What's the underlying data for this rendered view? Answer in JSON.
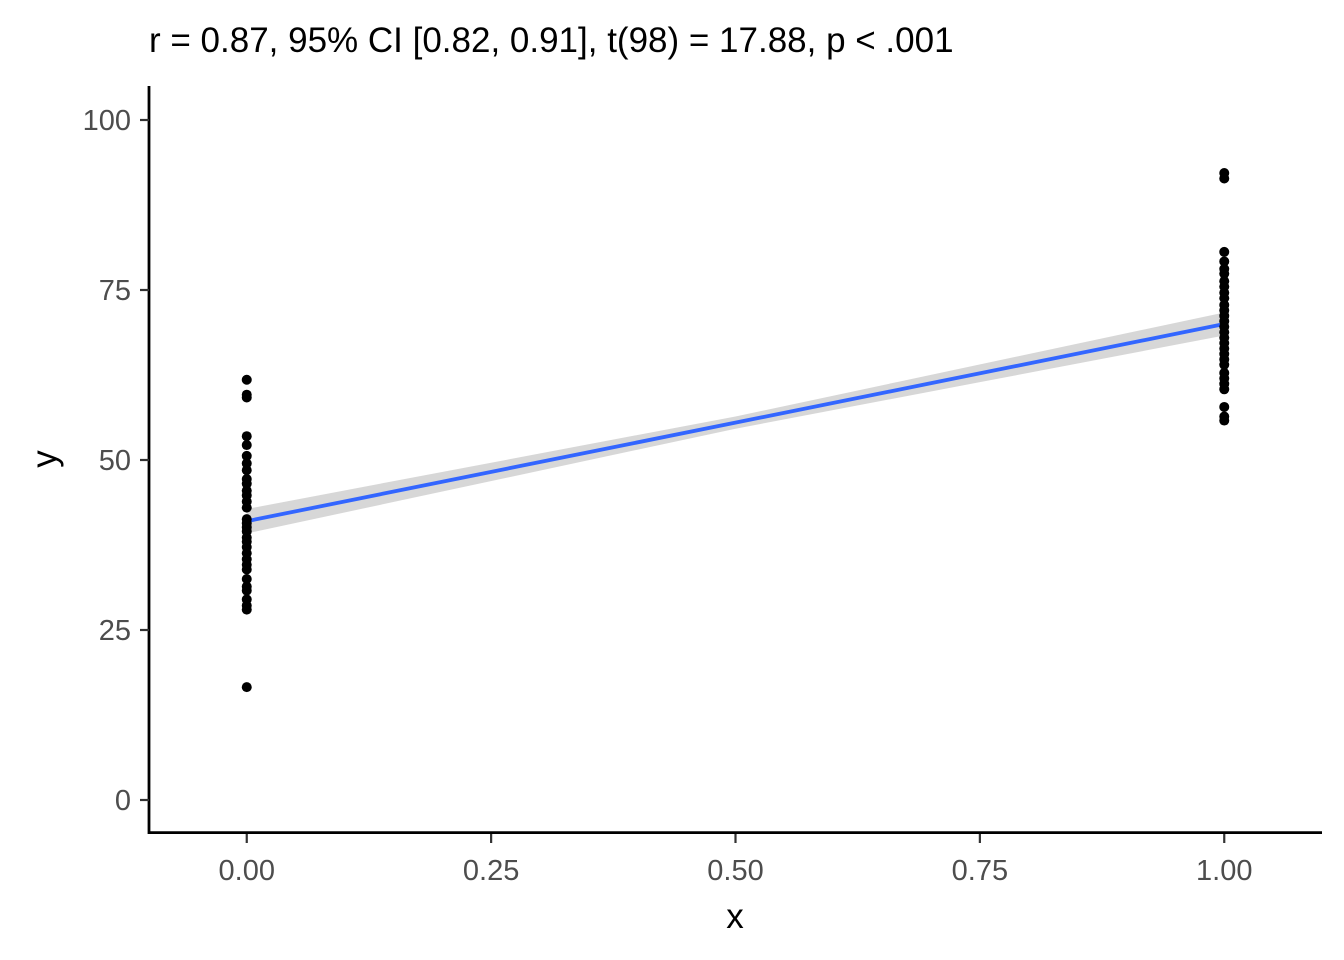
{
  "chart_data": {
    "type": "scatter",
    "title": "r = 0.87, 95% CI [0.82, 0.91], t(98) = 17.88, p < .001",
    "xlabel": "x",
    "ylabel": "y",
    "xlim": [
      -0.1,
      1.1
    ],
    "ylim": [
      -5,
      105
    ],
    "x_ticks": [
      0,
      0.25,
      0.5,
      0.75,
      1
    ],
    "x_tick_labels": [
      "0.00",
      "0.25",
      "0.50",
      "0.75",
      "1.00"
    ],
    "y_ticks": [
      0,
      25,
      50,
      75,
      100
    ],
    "y_tick_labels": [
      "0",
      "25",
      "50",
      "75",
      "100"
    ],
    "grid": false,
    "legend": "none",
    "series": [
      {
        "type": "scatter",
        "color": "#000000",
        "points": [
          {
            "x": 0,
            "y": 61.8
          },
          {
            "x": 0,
            "y": 59.6
          },
          {
            "x": 0,
            "y": 59.2
          },
          {
            "x": 0,
            "y": 53.5
          },
          {
            "x": 0,
            "y": 52.2
          },
          {
            "x": 0,
            "y": 50.6
          },
          {
            "x": 0,
            "y": 49.5
          },
          {
            "x": 0,
            "y": 48.5
          },
          {
            "x": 0,
            "y": 47.2
          },
          {
            "x": 0,
            "y": 46.5
          },
          {
            "x": 0,
            "y": 45.5
          },
          {
            "x": 0,
            "y": 44.8
          },
          {
            "x": 0,
            "y": 43.9
          },
          {
            "x": 0,
            "y": 43.0
          },
          {
            "x": 0,
            "y": 41.3
          },
          {
            "x": 0,
            "y": 40.7
          },
          {
            "x": 0,
            "y": 40.1
          },
          {
            "x": 0,
            "y": 39.5
          },
          {
            "x": 0,
            "y": 38.6
          },
          {
            "x": 0,
            "y": 38.0
          },
          {
            "x": 0,
            "y": 37.2
          },
          {
            "x": 0,
            "y": 36.3
          },
          {
            "x": 0,
            "y": 35.4
          },
          {
            "x": 0,
            "y": 34.6
          },
          {
            "x": 0,
            "y": 33.9
          },
          {
            "x": 0,
            "y": 32.5
          },
          {
            "x": 0,
            "y": 31.4
          },
          {
            "x": 0,
            "y": 30.8
          },
          {
            "x": 0,
            "y": 29.5
          },
          {
            "x": 0,
            "y": 28.6
          },
          {
            "x": 0,
            "y": 28.0
          },
          {
            "x": 0,
            "y": 16.6
          },
          {
            "x": 1,
            "y": 92.2
          },
          {
            "x": 1,
            "y": 91.4
          },
          {
            "x": 1,
            "y": 80.6
          },
          {
            "x": 1,
            "y": 79.2
          },
          {
            "x": 1,
            "y": 78.1
          },
          {
            "x": 1,
            "y": 77.4
          },
          {
            "x": 1,
            "y": 76.3
          },
          {
            "x": 1,
            "y": 75.5
          },
          {
            "x": 1,
            "y": 74.6
          },
          {
            "x": 1,
            "y": 73.8
          },
          {
            "x": 1,
            "y": 72.8
          },
          {
            "x": 1,
            "y": 72.0
          },
          {
            "x": 1,
            "y": 71.2
          },
          {
            "x": 1,
            "y": 70.4
          },
          {
            "x": 1,
            "y": 69.6
          },
          {
            "x": 1,
            "y": 68.8
          },
          {
            "x": 1,
            "y": 68.0
          },
          {
            "x": 1,
            "y": 67.2
          },
          {
            "x": 1,
            "y": 66.4
          },
          {
            "x": 1,
            "y": 65.6
          },
          {
            "x": 1,
            "y": 64.8
          },
          {
            "x": 1,
            "y": 64.0
          },
          {
            "x": 1,
            "y": 62.8
          },
          {
            "x": 1,
            "y": 62.0
          },
          {
            "x": 1,
            "y": 61.2
          },
          {
            "x": 1,
            "y": 60.4
          },
          {
            "x": 1,
            "y": 57.8
          },
          {
            "x": 1,
            "y": 56.4
          },
          {
            "x": 1,
            "y": 55.8
          }
        ]
      },
      {
        "type": "line",
        "color": "#3366ff",
        "x": [
          0,
          1
        ],
        "y": [
          41.0,
          70.0
        ]
      },
      {
        "type": "area",
        "color": "#d3d3d3",
        "x": [
          0,
          0.5,
          1
        ],
        "lower": [
          39.2,
          54.6,
          68.3
        ],
        "upper": [
          42.8,
          56.4,
          71.7
        ]
      }
    ]
  }
}
